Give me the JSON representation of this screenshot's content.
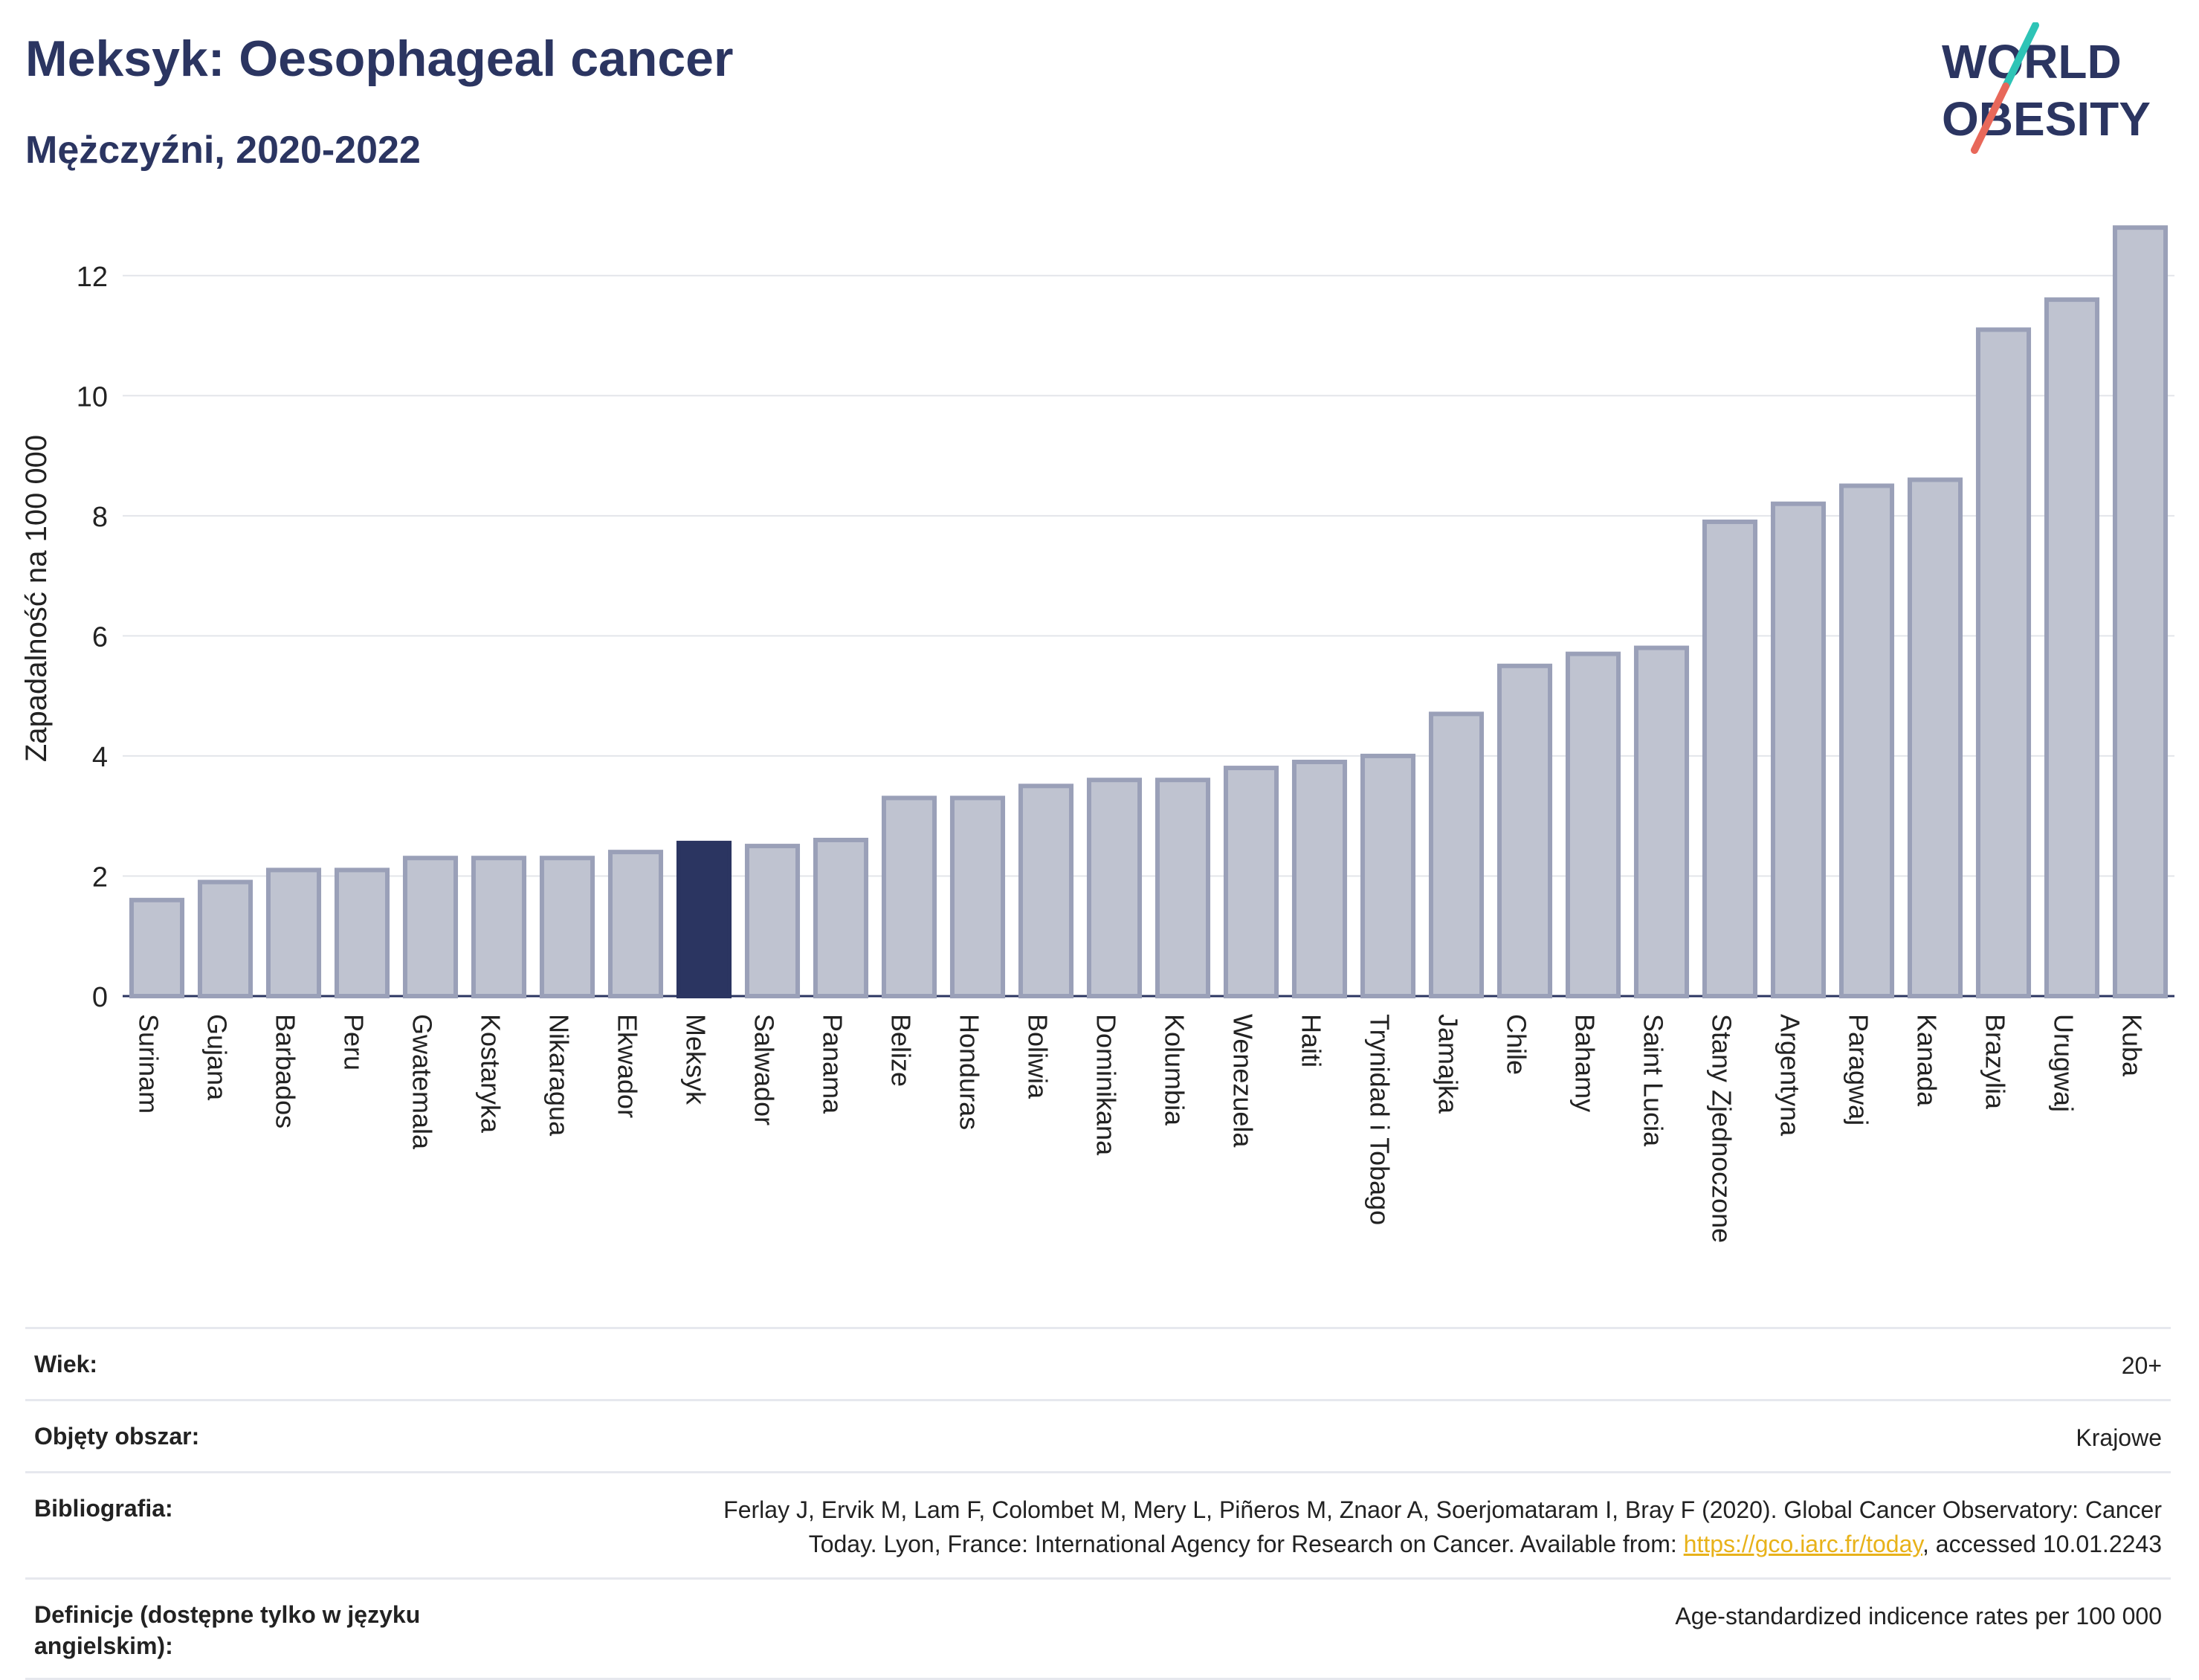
{
  "header": {
    "title": "Meksyk: Oesophageal cancer",
    "subtitle": "Mężczyźni, 2020-2022",
    "logo_line1": "WORLD",
    "logo_line2": "OBESITY"
  },
  "colors": {
    "highlight_bar": "#2b3561",
    "other_bar_fill": "#bfc3d0",
    "other_bar_stroke": "#9aa0b8",
    "logo_text": "#2b3561",
    "logo_slash_top": "#2ec4b6",
    "logo_slash_bottom": "#e8685a",
    "link": "#e8b21a"
  },
  "chart_data": {
    "type": "bar",
    "ylabel": "Zapadalność na 100 000",
    "xlabel": "",
    "ylim": [
      0,
      13
    ],
    "yticks": [
      0,
      2,
      4,
      6,
      8,
      10,
      12
    ],
    "highlight": "Meksyk",
    "grid": true,
    "categories": [
      "Surinam",
      "Gujana",
      "Barbados",
      "Peru",
      "Gwatemala",
      "Kostaryka",
      "Nikaragua",
      "Ekwador",
      "Meksyk",
      "Salwador",
      "Panama",
      "Belize",
      "Honduras",
      "Boliwia",
      "Dominikana",
      "Kolumbia",
      "Wenezuela",
      "Haiti",
      "Trynidad i Tobago",
      "Jamajka",
      "Chile",
      "Bahamy",
      "Saint Lucia",
      "Stany Zjednoczone",
      "Argentyna",
      "Paragwaj",
      "Kanada",
      "Brazylia",
      "Urugwaj",
      "Kuba"
    ],
    "values": [
      1.6,
      1.9,
      2.1,
      2.1,
      2.3,
      2.3,
      2.3,
      2.4,
      2.55,
      2.5,
      2.6,
      3.3,
      3.3,
      3.5,
      3.6,
      3.6,
      3.8,
      3.9,
      4.0,
      4.7,
      5.5,
      5.7,
      5.8,
      7.9,
      8.2,
      8.5,
      8.6,
      11.1,
      11.6,
      12.8
    ]
  },
  "meta": {
    "age_label": "Wiek:",
    "age_value": "20+",
    "area_label": "Objęty obszar:",
    "area_value": "Krajowe",
    "biblio_label": "Bibliografia:",
    "biblio_line1": "Ferlay J, Ervik M, Lam F, Colombet M, Mery L, Piñeros M, Znaor A, Soerjomataram I, Bray F (2020). Global Cancer Observatory: Cancer",
    "biblio_line2_pre": "Today. Lyon, France: International Agency for Research on Cancer. Available from: ",
    "biblio_link": "https://gco.iarc.fr/today",
    "biblio_line2_post": ", accessed 10.01.2243",
    "def_label": "Definicje (dostępne tylko w języku angielskim):",
    "def_value": "Age-standardized indicence rates per 100 000"
  }
}
